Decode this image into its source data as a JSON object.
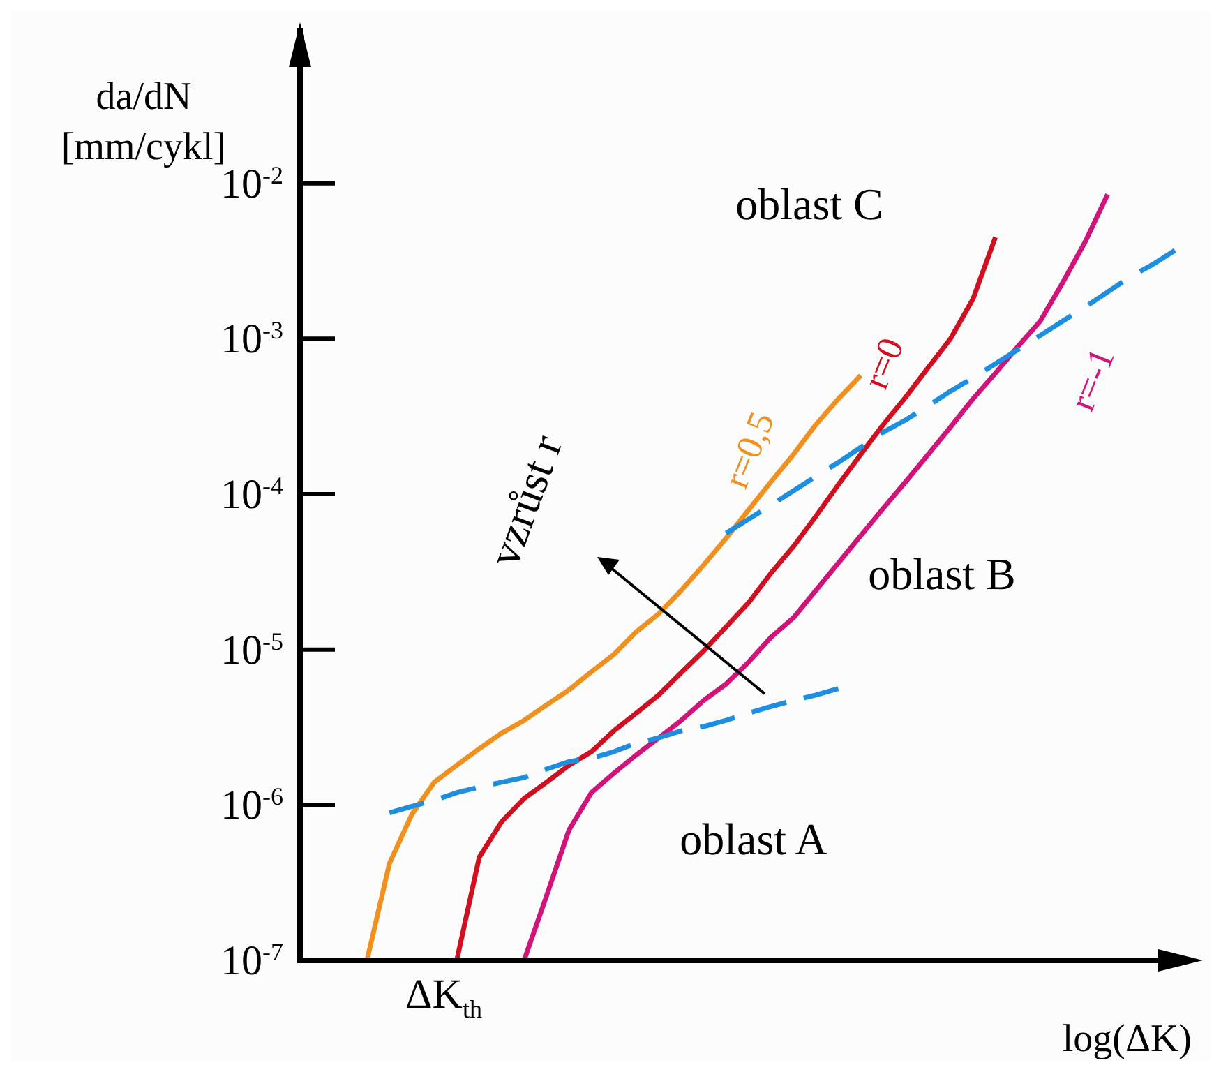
{
  "chart_data": {
    "type": "line",
    "xlabel": "log(ΔK)",
    "ylabel": "da/dN [mm/cykl]",
    "log": "y",
    "ylim": [
      1e-07,
      0.1
    ],
    "categories": [
      null,
      null,
      null,
      null,
      null,
      null,
      null,
      null,
      null,
      null,
      null,
      null,
      null,
      null,
      null,
      null,
      null,
      null,
      null,
      null,
      null,
      null,
      null,
      null,
      null,
      null,
      null,
      null,
      null,
      null,
      null,
      null,
      null,
      null,
      null,
      null,
      null
    ],
    "yticks": [
      {
        "value": 1e-07,
        "label": "10$^{-7}$"
      },
      {
        "value": 1e-06,
        "label": "10$^{-6}$"
      },
      {
        "value": 1e-05,
        "label": "10$^{-5}$"
      },
      {
        "value": 0.0001,
        "label": "10$^{-4}$"
      },
      {
        "value": 0.001,
        "label": "10$^{-3}$"
      },
      {
        "value": 0.01,
        "label": "10$^{-2}$"
      }
    ],
    "grid": false,
    "legend": false,
    "tick_labels": "y",
    "series": [
      {
        "name": "r=0,5",
        "color": "#f0901e",
        "values": [
          1e-07,
          4.2e-07,
          8.7e-07,
          1.4e-06,
          1.8e-06,
          2.3e-06,
          2.9e-06,
          3.5e-06,
          4.4e-06,
          5.5e-06,
          7.2e-06,
          9.3e-06,
          1.3e-05,
          1.7e-05,
          2.4e-05,
          3.5e-05,
          5.2e-05,
          7.9e-05,
          0.00012,
          0.00018,
          0.00028,
          0.00041,
          0.00058,
          null,
          null,
          null,
          null,
          null,
          null,
          null,
          null,
          null,
          null,
          null,
          null,
          null,
          null
        ]
      },
      {
        "name": "r=0",
        "color": "#d01020",
        "values": [
          null,
          null,
          null,
          null,
          1e-07,
          4.6e-07,
          7.8e-07,
          1.1e-06,
          1.4e-06,
          1.8e-06,
          2.2e-06,
          3e-06,
          3.9e-06,
          5.1e-06,
          7.1e-06,
          9.8e-06,
          1.4e-05,
          2e-05,
          3.1e-05,
          4.6e-05,
          7.2e-05,
          0.000115,
          0.00018,
          0.00028,
          0.00042,
          0.00065,
          0.001,
          0.0018,
          0.0045,
          null,
          null,
          null,
          null,
          null,
          null,
          null,
          null
        ]
      },
      {
        "name": "r=-1",
        "color": "#d0147a",
        "values": [
          null,
          null,
          null,
          null,
          null,
          null,
          null,
          1e-07,
          2.6e-07,
          6.9e-07,
          1.2e-06,
          1.6e-06,
          2.1e-06,
          2.7e-06,
          3.5e-06,
          4.7e-06,
          6e-06,
          8.3e-06,
          1.2e-05,
          1.6e-05,
          2.4e-05,
          3.6e-05,
          5.4e-05,
          8.1e-05,
          0.00012,
          0.00018,
          0.00027,
          0.00041,
          0.0006,
          0.00089,
          0.0013,
          0.0023,
          0.0042,
          0.0085,
          null,
          null,
          null
        ]
      },
      {
        "color": "#1e8ee0",
        "line_style": "dashed",
        "values": [
          null,
          null,
          null,
          null,
          null,
          null,
          null,
          null,
          null,
          null,
          null,
          null,
          null,
          null,
          null,
          null,
          5.6e-05,
          6.9e-05,
          8.5e-05,
          0.000105,
          0.00013,
          0.00016,
          0.0002,
          0.00025,
          0.0003,
          0.00037,
          0.00046,
          0.00056,
          0.00069,
          0.00085,
          0.00105,
          0.0013,
          0.0016,
          0.002,
          0.0025,
          0.003,
          0.0037
        ]
      },
      {
        "color": "#1e8ee0",
        "line_style": "dashed",
        "values": [
          null,
          8.9e-07,
          9.8e-07,
          1.07e-06,
          1.2e-06,
          1.3e-06,
          1.4e-06,
          1.5e-06,
          1.7e-06,
          1.9e-06,
          2e-06,
          2.2e-06,
          2.5e-06,
          2.7e-06,
          3e-06,
          3.2e-06,
          3.5e-06,
          3.9e-06,
          4.3e-06,
          4.7e-06,
          5.1e-06,
          5.6e-06,
          null,
          null,
          null,
          null,
          null,
          null,
          null,
          null,
          null,
          null,
          null,
          null,
          null,
          null,
          null
        ]
      }
    ],
    "annotations": [
      "oblast C",
      "oblast B",
      "oblast A",
      "vzrůst r",
      "ΔK$_{th}$"
    ]
  }
}
